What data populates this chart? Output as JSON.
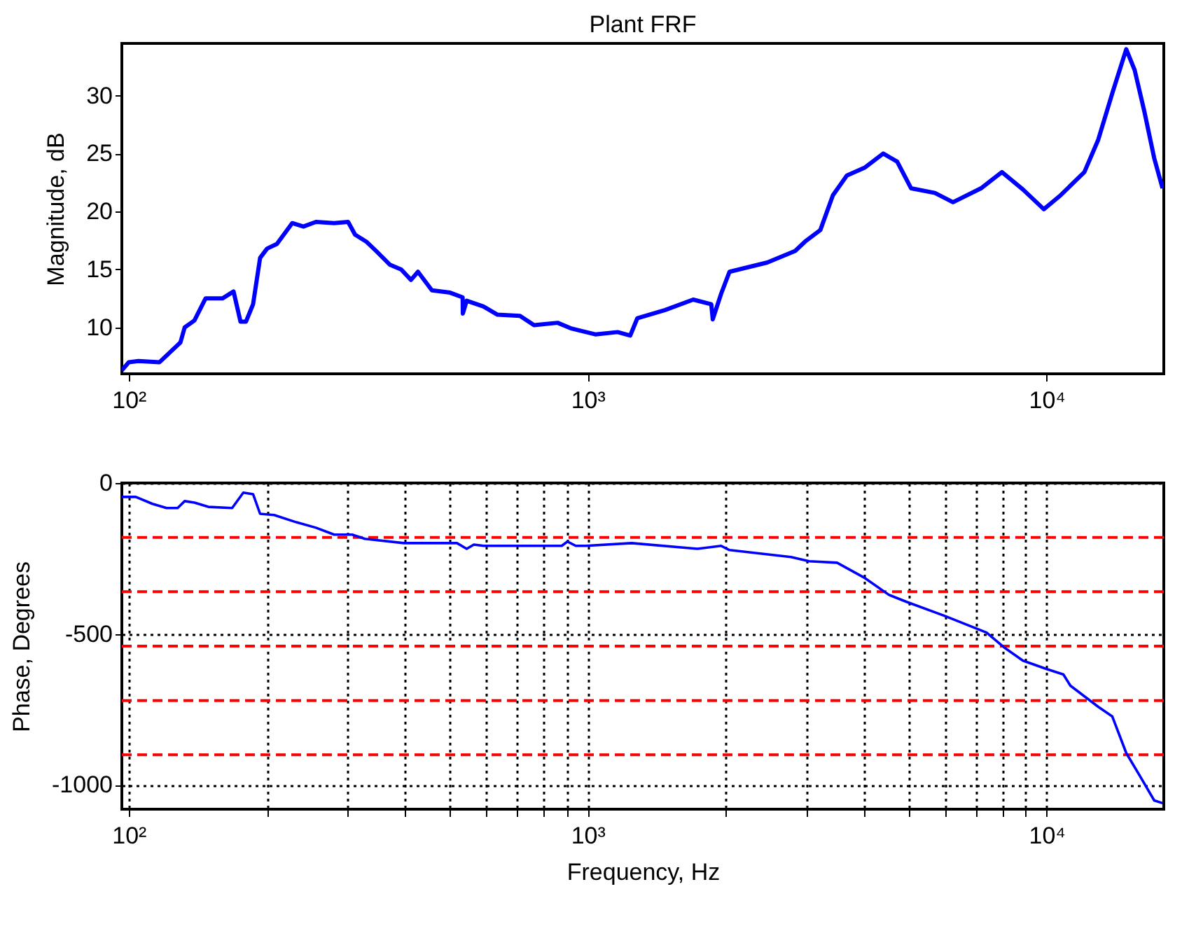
{
  "chart_data": [
    {
      "type": "line",
      "title": "Plant FRF",
      "ylabel": "Magnitude, dB",
      "grid": false,
      "line_style": "solid",
      "marker": "none",
      "xlim": [
        96.6,
        18000
      ],
      "xticks": [
        {
          "value": 100,
          "label": "10²"
        },
        {
          "value": 1000,
          "label": "10³"
        },
        {
          "value": 10000,
          "label": "10⁴"
        }
      ],
      "ylim": [
        6,
        34.5
      ],
      "yticks": [
        10,
        15,
        20,
        25,
        30
      ],
      "log": "x",
      "series": [
        {
          "color": "#0000ff",
          "x": [
            96.6,
            100,
            105,
            116.7,
            122.6,
            129.6,
            132.4,
            139,
            147,
            160,
            169.2,
            175.2,
            180.1,
            186.6,
            193.3,
            200.2,
            210.3,
            227.1,
            240.2,
            255.8,
            280.3,
            300.6,
            311.3,
            329.3,
            345.8,
            371,
            392.4,
            412.1,
            426.8,
            457.7,
            501.4,
            534,
            534.5,
            545,
            593,
            636,
            712,
            764,
            860,
            923,
            1039,
            1162,
            1238,
            1283,
            1475,
            1698,
            1859,
            1873,
            1953,
            2037,
            2462,
            2832,
            2975,
            3213,
            3422,
            3670,
            4021,
            4405,
            4724,
            5067,
            5708,
            6252,
            7194,
            7991,
            8877,
            9860,
            10725,
            12084,
            12958,
            13903,
            14910,
            15553,
            16334,
            17156,
            17889
          ],
          "values": [
            6.3,
            7.0,
            7.1,
            7.0,
            7.8,
            8.7,
            10.0,
            10.6,
            12.5,
            12.5,
            13.1,
            10.5,
            10.5,
            12.0,
            16.0,
            16.8,
            17.2,
            19.0,
            18.7,
            19.1,
            19.0,
            19.1,
            18.0,
            17.4,
            16.6,
            15.4,
            15.0,
            14.1,
            14.8,
            13.2,
            13.0,
            12.6,
            11.2,
            12.3,
            11.8,
            11.1,
            11.0,
            10.2,
            10.4,
            9.9,
            9.4,
            9.6,
            9.3,
            10.8,
            11.5,
            12.4,
            12.0,
            10.7,
            12.9,
            14.8,
            15.6,
            16.6,
            17.4,
            18.4,
            21.4,
            23.1,
            23.8,
            25.0,
            24.3,
            22.0,
            21.6,
            20.8,
            22.0,
            23.4,
            21.9,
            20.2,
            21.4,
            23.4,
            26.2,
            30.2,
            34.0,
            32.2,
            28.6,
            24.6,
            22.0
          ]
        }
      ]
    },
    {
      "type": "line",
      "xlabel": "Frequency, Hz",
      "ylabel": "Phase, Degrees",
      "grid": true,
      "line_style": "solid",
      "marker": "none",
      "xlim": [
        96.6,
        18000
      ],
      "xticks": [
        {
          "value": 100,
          "label": "10²"
        },
        {
          "value": 200,
          "label": null
        },
        {
          "value": 300,
          "label": null
        },
        {
          "value": 400,
          "label": null
        },
        {
          "value": 500,
          "label": null
        },
        {
          "value": 600,
          "label": null
        },
        {
          "value": 700,
          "label": null
        },
        {
          "value": 800,
          "label": null
        },
        {
          "value": 900,
          "label": null
        },
        {
          "value": 1000,
          "label": "10³"
        },
        {
          "value": 2000,
          "label": null
        },
        {
          "value": 3000,
          "label": null
        },
        {
          "value": 4000,
          "label": null
        },
        {
          "value": 5000,
          "label": null
        },
        {
          "value": 6000,
          "label": null
        },
        {
          "value": 7000,
          "label": null
        },
        {
          "value": 8000,
          "label": null
        },
        {
          "value": 9000,
          "label": null
        },
        {
          "value": 10000,
          "label": "10⁴"
        }
      ],
      "ylim": [
        -1080,
        0
      ],
      "yticks": [
        -1000,
        -500,
        0
      ],
      "log": "x",
      "ref_lines": [
        {
          "axis": "y",
          "value": -180,
          "color": "#ff0000",
          "line_style": "dashed"
        },
        {
          "axis": "y",
          "value": -360,
          "color": "#ff0000",
          "line_style": "dashed"
        },
        {
          "axis": "y",
          "value": -540,
          "color": "#ff0000",
          "line_style": "dashed"
        },
        {
          "axis": "y",
          "value": -720,
          "color": "#ff0000",
          "line_style": "dashed"
        },
        {
          "axis": "y",
          "value": -900,
          "color": "#ff0000",
          "line_style": "dashed"
        }
      ],
      "series": [
        {
          "color": "#0000ff",
          "x": [
            96.6,
            103.6,
            112.6,
            120.9,
            127.8,
            132.4,
            139,
            149.1,
            168,
            177.7,
            186.6,
            193.3,
            207.4,
            231.9,
            255.8,
            280.3,
            306.9,
            327,
            397.9,
            501.4,
            519,
            545,
            565,
            593,
            878,
            903,
            942,
            990,
            1247,
            1734,
            1953,
            2037,
            2773,
            3037,
            3494,
            4021,
            4529,
            4962,
            5997,
            7396,
            8105,
            8877,
            10000,
            10877,
            11265,
            12958,
            13903,
            14910,
            15995,
            17156,
            17889
          ],
          "values": [
            -46,
            -46,
            -69,
            -83,
            -83,
            -60,
            -65,
            -79,
            -83,
            -32,
            -37,
            -102,
            -106,
            -130,
            -148,
            -171,
            -171,
            -185,
            -199,
            -199,
            -199,
            -218,
            -204,
            -208,
            -208,
            -194,
            -208,
            -208,
            -199,
            -218,
            -208,
            -222,
            -245,
            -259,
            -264,
            -315,
            -370,
            -394,
            -440,
            -495,
            -546,
            -588,
            -616,
            -634,
            -671,
            -741,
            -773,
            -894,
            -972,
            -1051,
            -1060
          ]
        }
      ]
    }
  ]
}
